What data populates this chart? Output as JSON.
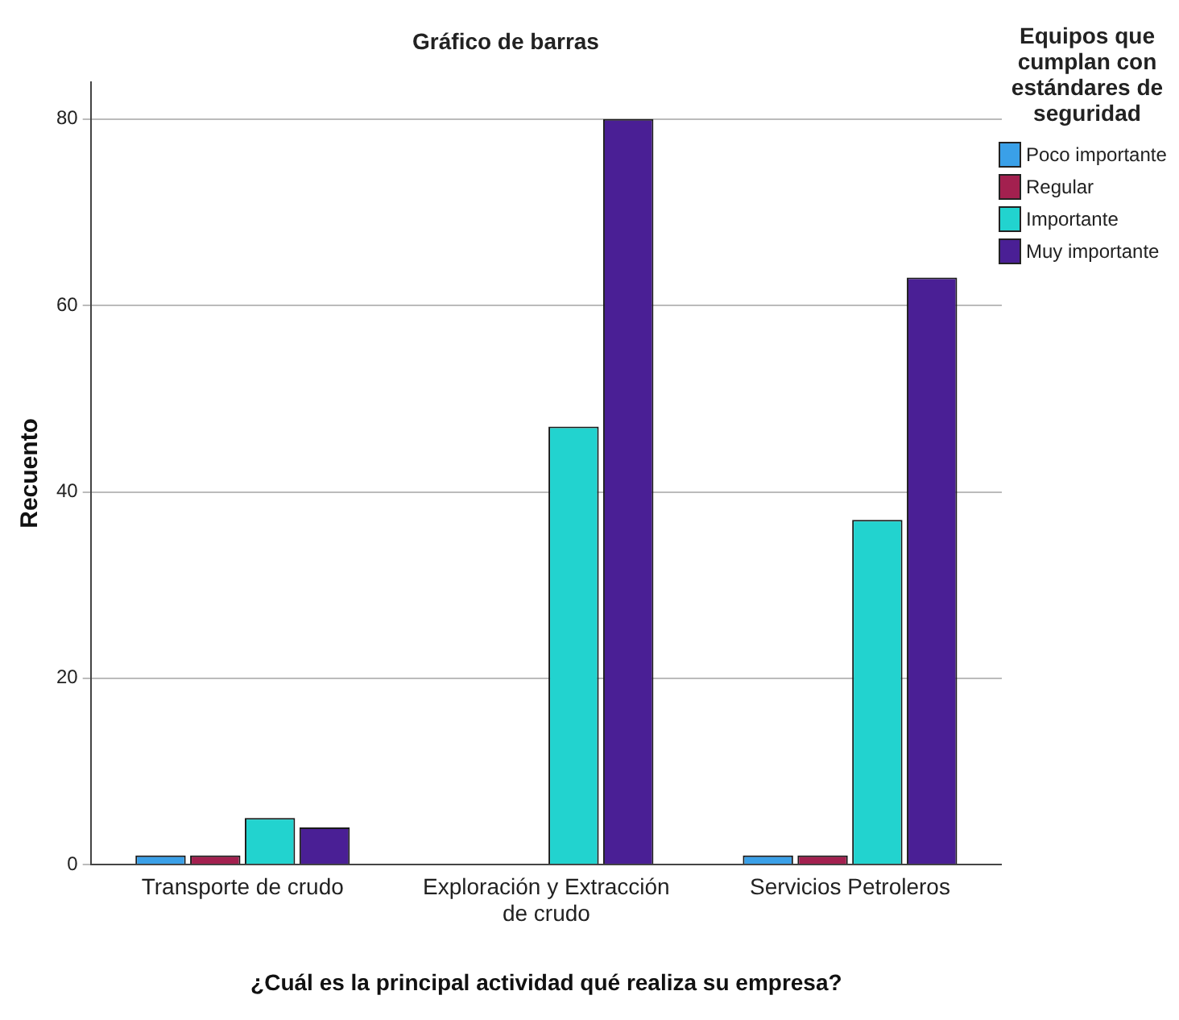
{
  "chart_data": {
    "type": "bar",
    "title": "Gráfico de barras",
    "xlabel": "¿Cuál es la principal actividad qué realiza su empresa?",
    "ylabel": "Recuento",
    "legend_title": "Equipos que cumplan con estándares de seguridad",
    "legend": "right",
    "grid": "y",
    "categories": [
      "Transporte de crudo",
      "Exploración y Extracción de crudo",
      "Servicios Petroleros"
    ],
    "ylim": [
      0,
      84
    ],
    "yticks": [
      0,
      20,
      40,
      60,
      80
    ],
    "series": [
      {
        "name": "Poco importante",
        "color": "#3aa0e8",
        "values": [
          1,
          null,
          1
        ]
      },
      {
        "name": "Regular",
        "color": "#a3204f",
        "values": [
          1,
          null,
          1
        ]
      },
      {
        "name": "Importante",
        "color": "#22d3cf",
        "values": [
          5,
          47,
          37
        ]
      },
      {
        "name": "Muy importante",
        "color": "#4a1f95",
        "values": [
          4,
          80,
          63
        ]
      }
    ]
  }
}
